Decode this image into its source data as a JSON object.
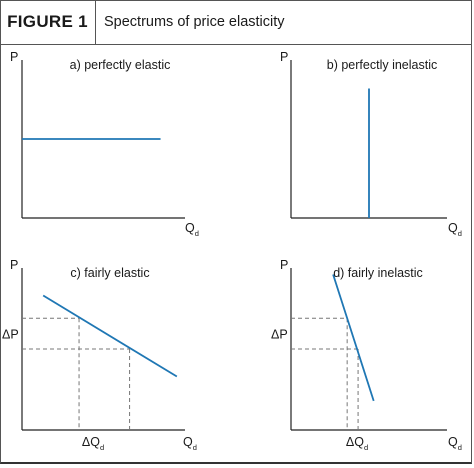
{
  "figure": {
    "label": "FIGURE 1",
    "title": "Spectrums of price elasticity"
  },
  "colors": {
    "curve": "#1f77b4",
    "axis": "#222222",
    "guide": "#777777"
  },
  "chart_data": [
    {
      "type": "line",
      "title": "a) perfectly elastic",
      "ylabel": "P",
      "xlabel": "Q",
      "xlabel_sub": "d",
      "xlim": [
        0,
        10
      ],
      "ylim": [
        0,
        10
      ],
      "series": [
        {
          "x": [
            0,
            8.5
          ],
          "y": [
            5,
            5
          ]
        }
      ]
    },
    {
      "type": "line",
      "title": "b) perfectly inelastic",
      "ylabel": "P",
      "xlabel": "Q",
      "xlabel_sub": "d",
      "xlim": [
        0,
        10
      ],
      "ylim": [
        0,
        10
      ],
      "series": [
        {
          "x": [
            5,
            5
          ],
          "y": [
            0,
            8.2
          ]
        }
      ]
    },
    {
      "type": "line",
      "title": "c) fairly elastic",
      "ylabel": "P",
      "xlabel": "Q",
      "xlabel_sub": "d",
      "delta_p": "ΔP",
      "delta_q": "ΔQ",
      "delta_q_sub": "d",
      "xlim": [
        0,
        10
      ],
      "ylim": [
        0,
        10
      ],
      "series": [
        {
          "x": [
            1.3,
            9.5
          ],
          "y": [
            8.3,
            3.3
          ]
        }
      ],
      "guides": [
        {
          "x": 3.5,
          "y": 6.9
        },
        {
          "x": 6.6,
          "y": 5.0
        }
      ]
    },
    {
      "type": "line",
      "title": "d) fairly inelastic",
      "ylabel": "P",
      "xlabel": "Q",
      "xlabel_sub": "d",
      "delta_p": "ΔP",
      "delta_q": "ΔQ",
      "delta_q_sub": "d",
      "xlim": [
        0,
        10
      ],
      "ylim": [
        0,
        10
      ],
      "series": [
        {
          "x": [
            2.7,
            5.3
          ],
          "y": [
            9.6,
            1.8
          ]
        }
      ],
      "guides": [
        {
          "x": 3.6,
          "y": 6.9
        },
        {
          "x": 4.3,
          "y": 5.0
        }
      ]
    }
  ]
}
